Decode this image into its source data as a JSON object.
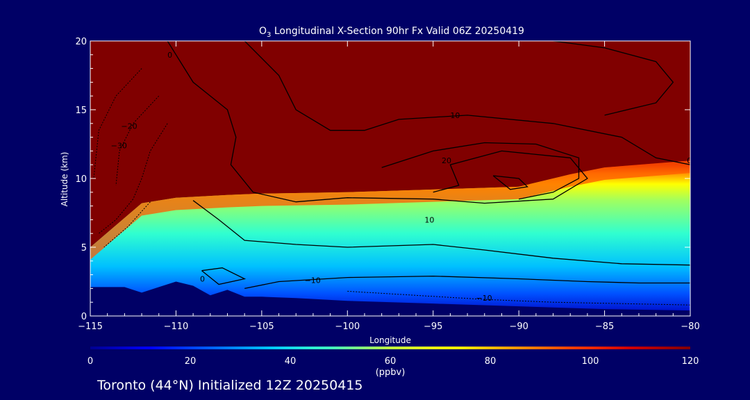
{
  "chart_data": {
    "type": "heatmap",
    "title": "O",
    "title_subscript": "3",
    "title_rest": " Longitudinal X-Section 90hr  Fx Valid 06Z 20250419",
    "xlabel": "Longitude",
    "ylabel": "Altitude (km)",
    "xlim": [
      -115,
      -80
    ],
    "ylim": [
      0,
      20
    ],
    "x_ticks": [
      -115,
      -110,
      -105,
      -100,
      -95,
      -90,
      -85,
      -80
    ],
    "x_tick_labels": [
      "−115",
      "−110",
      "−105",
      "−100",
      "−95",
      "−90",
      "−85",
      "−80"
    ],
    "y_ticks": [
      0,
      5,
      10,
      15,
      20
    ],
    "y_tick_labels": [
      "0",
      "5",
      "10",
      "15",
      "20"
    ],
    "colorbar": {
      "label": "(ppbv)",
      "range": [
        0,
        120
      ],
      "ticks": [
        0,
        20,
        40,
        60,
        80,
        100,
        120
      ],
      "tick_labels": [
        "0",
        "20",
        "40",
        "60",
        "80",
        "100",
        "120"
      ],
      "colors": [
        "#000090",
        "#0000ff",
        "#0060ff",
        "#00c8ff",
        "#40ffc0",
        "#c0ff40",
        "#ffff00",
        "#ffa000",
        "#ff4000",
        "#d00000",
        "#800000"
      ]
    },
    "ozone_field": {
      "description_units": "ppbv",
      "tropopause_height_km_by_lon": {
        "lon": [
          -115,
          -112,
          -110,
          -107,
          -105,
          -100,
          -95,
          -90,
          -87,
          -85,
          -80
        ],
        "alt": [
          5.0,
          8.2,
          8.6,
          8.8,
          8.9,
          9.0,
          9.2,
          9.4,
          10.3,
          10.8,
          11.3
        ]
      },
      "terrain_height_km_by_lon": {
        "lon": [
          -115,
          -113,
          -112,
          -111,
          -110,
          -109,
          -108,
          -107,
          -106,
          -105,
          -103,
          -100,
          -95,
          -90,
          -85,
          -80
        ],
        "alt": [
          2.1,
          2.1,
          1.7,
          2.1,
          2.5,
          2.2,
          1.5,
          1.9,
          1.4,
          1.4,
          1.3,
          1.1,
          0.9,
          0.7,
          0.5,
          0.4
        ]
      },
      "upper_value": 120
    },
    "contour_labels": [
      "0",
      "10",
      "−10",
      "−20",
      "−30",
      "20",
      "0",
      "10",
      "−10",
      "0"
    ],
    "footer": "Toronto (44°N) Initialized 12Z 20250415"
  }
}
